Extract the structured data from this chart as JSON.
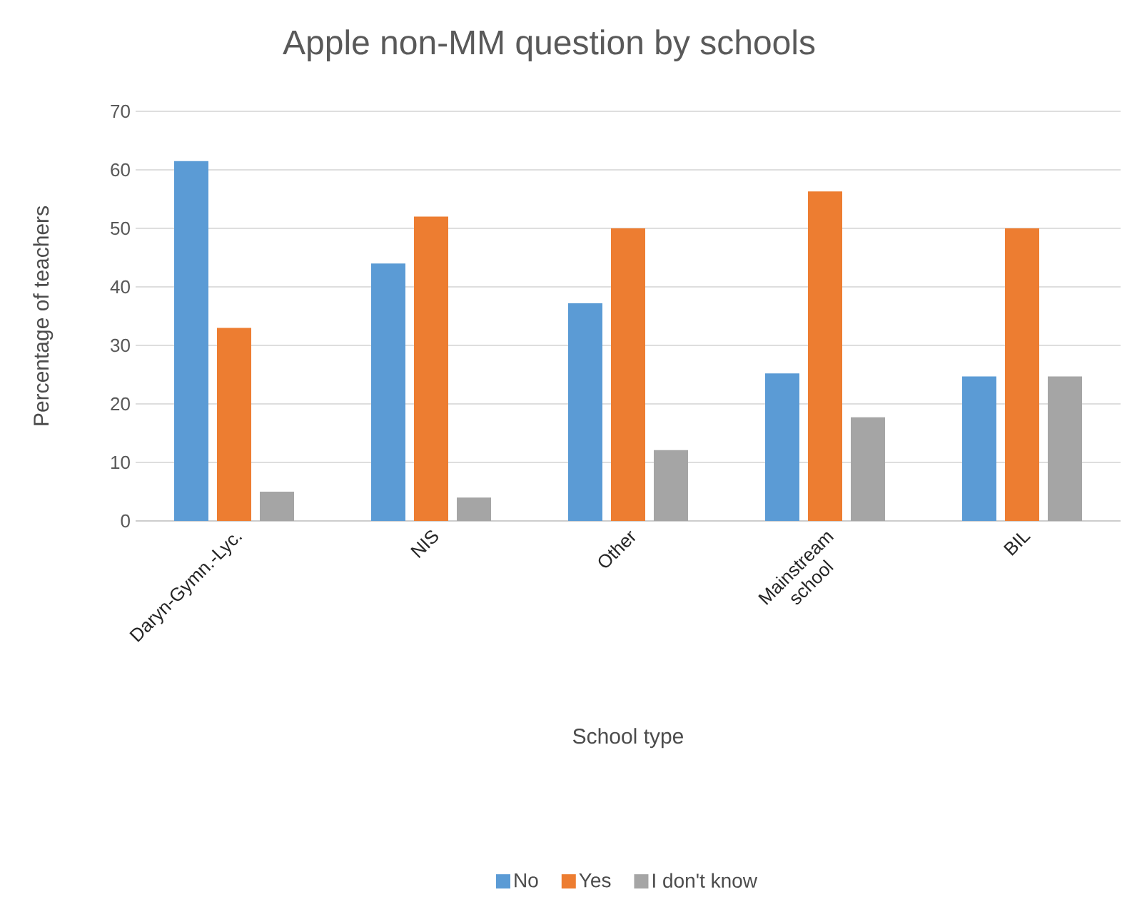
{
  "chart_data": {
    "type": "bar",
    "title": "Apple non-MM question by schools",
    "xlabel": "School type",
    "ylabel": "Percentage of teachers",
    "categories": [
      "Daryn-Gymn.-Lyc.",
      "NIS",
      "Other",
      "Mainstream school",
      "BIL"
    ],
    "series": [
      {
        "name": "No",
        "color": "#5b9bd5",
        "values": [
          61.5,
          44.0,
          37.2,
          25.2,
          24.7
        ]
      },
      {
        "name": "Yes",
        "color": "#ed7d31",
        "values": [
          33.0,
          52.0,
          50.0,
          56.3,
          50.0
        ]
      },
      {
        "name": "I don't know",
        "color": "#a5a5a5",
        "values": [
          5.0,
          4.0,
          12.1,
          17.7,
          24.7
        ]
      }
    ],
    "ylim": [
      0,
      70
    ],
    "yticks": [
      0,
      10,
      20,
      30,
      40,
      50,
      60,
      70
    ],
    "grid": "y",
    "legend": "bottom"
  }
}
